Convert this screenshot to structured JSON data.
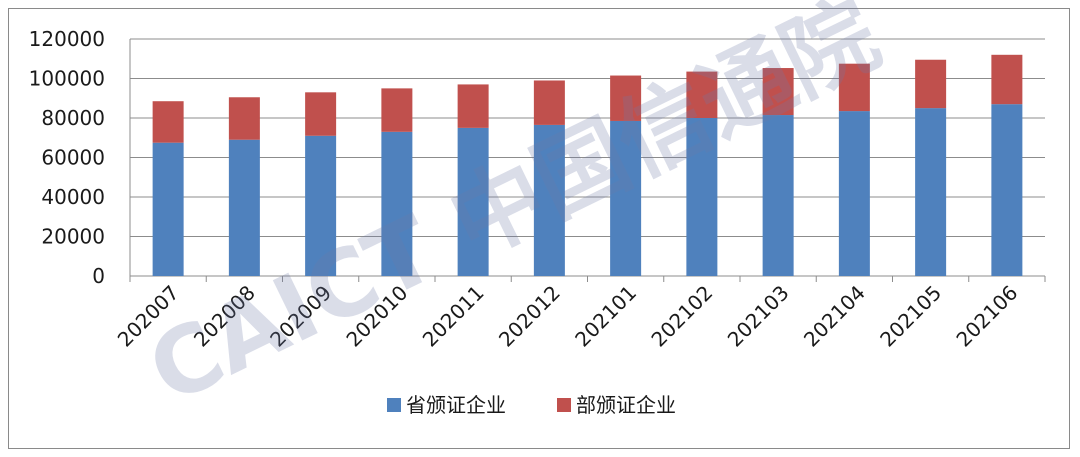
{
  "chart_data": {
    "type": "bar",
    "stacked": true,
    "categories": [
      "202007",
      "202008",
      "202009",
      "202010",
      "202011",
      "202012",
      "202101",
      "202102",
      "202103",
      "202104",
      "202105",
      "202106"
    ],
    "series": [
      {
        "name": "省颁证企业",
        "color": "#4f81bd",
        "values": [
          67500,
          69000,
          71000,
          73000,
          75000,
          76500,
          78500,
          80000,
          81500,
          83500,
          85000,
          87000
        ]
      },
      {
        "name": "部颁证企业",
        "color": "#c0504d",
        "values": [
          21000,
          21500,
          22000,
          22000,
          22000,
          22500,
          23000,
          23500,
          23800,
          24000,
          24500,
          25000
        ]
      }
    ],
    "yticks": [
      "0",
      "20000",
      "40000",
      "60000",
      "80000",
      "100000",
      "120000"
    ],
    "ylim": [
      0,
      120000
    ],
    "grid": true,
    "legend": "bottom-center"
  },
  "watermark": "CAICT 中国信通院"
}
